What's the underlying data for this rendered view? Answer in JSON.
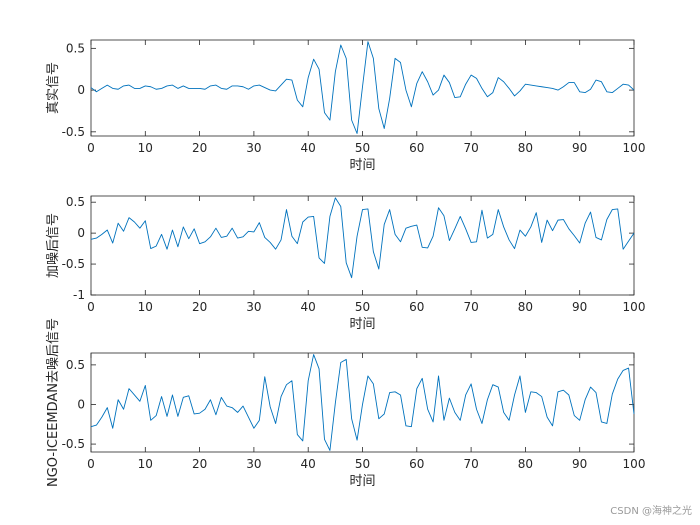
{
  "chart_data": [
    {
      "type": "line",
      "xlabel": "时间",
      "ylabel": "真实信号",
      "xlim": [
        0,
        100
      ],
      "ylim": [
        -0.55,
        0.6
      ],
      "xticks": [
        0,
        10,
        20,
        30,
        40,
        50,
        60,
        70,
        80,
        90,
        100
      ],
      "yticks": [
        -0.5,
        0,
        0.5
      ],
      "ytick_labels": [
        "-0.5",
        "0",
        "0.5"
      ],
      "grid": false,
      "series_color": "#0072BD",
      "x": [
        0,
        1,
        2,
        3,
        4,
        5,
        6,
        7,
        8,
        9,
        10,
        11,
        12,
        13,
        14,
        15,
        16,
        17,
        18,
        19,
        20,
        21,
        22,
        23,
        24,
        25,
        26,
        27,
        28,
        29,
        30,
        31,
        32,
        33,
        34,
        35,
        36,
        37,
        38,
        39,
        40,
        41,
        42,
        43,
        44,
        45,
        46,
        47,
        48,
        49,
        50,
        51,
        52,
        53,
        54,
        55,
        56,
        57,
        58,
        59,
        60,
        61,
        62,
        63,
        64,
        65,
        66,
        67,
        68,
        69,
        70,
        71,
        72,
        73,
        74,
        75,
        76,
        77,
        78,
        79,
        80,
        81,
        82,
        83,
        84,
        85,
        86,
        87,
        88,
        89,
        90,
        91,
        92,
        93,
        94,
        95,
        96,
        97,
        98,
        99,
        100
      ],
      "values": [
        0.03,
        -0.02,
        0.02,
        0.06,
        0.02,
        0.01,
        0.05,
        0.06,
        0.02,
        0.02,
        0.05,
        0.04,
        0.01,
        0.02,
        0.05,
        0.06,
        0.02,
        0.05,
        0.02,
        0.02,
        0.02,
        0.01,
        0.05,
        0.06,
        0.02,
        0.01,
        0.05,
        0.05,
        0.04,
        0.01,
        0.05,
        0.06,
        0.03,
        0.0,
        -0.01,
        0.06,
        0.13,
        0.12,
        -0.12,
        -0.2,
        0.15,
        0.37,
        0.25,
        -0.27,
        -0.36,
        0.22,
        0.54,
        0.38,
        -0.36,
        -0.52,
        0.04,
        0.58,
        0.38,
        -0.22,
        -0.46,
        -0.1,
        0.38,
        0.33,
        0.0,
        -0.2,
        0.08,
        0.22,
        0.1,
        -0.06,
        0.0,
        0.18,
        0.09,
        -0.09,
        -0.08,
        0.07,
        0.18,
        0.14,
        0.02,
        -0.08,
        -0.03,
        0.15,
        0.1,
        0.02,
        -0.07,
        -0.01,
        0.07,
        0.06,
        0.05,
        0.04,
        0.03,
        0.02,
        0.0,
        0.04,
        0.09,
        0.09,
        -0.02,
        -0.03,
        0.01,
        0.12,
        0.1,
        -0.02,
        -0.03,
        0.02,
        0.07,
        0.06,
        0.0
      ]
    },
    {
      "type": "line",
      "xlabel": "时间",
      "ylabel": "加噪后信号",
      "xlim": [
        0,
        100
      ],
      "ylim": [
        -1,
        0.6
      ],
      "xticks": [
        0,
        10,
        20,
        30,
        40,
        50,
        60,
        70,
        80,
        90,
        100
      ],
      "yticks": [
        -1,
        -0.5,
        0,
        0.5
      ],
      "ytick_labels": [
        "-1",
        "-0.5",
        "0",
        "0.5"
      ],
      "grid": false,
      "series_color": "#0072BD",
      "x": [
        0,
        1,
        2,
        3,
        4,
        5,
        6,
        7,
        8,
        9,
        10,
        11,
        12,
        13,
        14,
        15,
        16,
        17,
        18,
        19,
        20,
        21,
        22,
        23,
        24,
        25,
        26,
        27,
        28,
        29,
        30,
        31,
        32,
        33,
        34,
        35,
        36,
        37,
        38,
        39,
        40,
        41,
        42,
        43,
        44,
        45,
        46,
        47,
        48,
        49,
        50,
        51,
        52,
        53,
        54,
        55,
        56,
        57,
        58,
        59,
        60,
        61,
        62,
        63,
        64,
        65,
        66,
        67,
        68,
        69,
        70,
        71,
        72,
        73,
        74,
        75,
        76,
        77,
        78,
        79,
        80,
        81,
        82,
        83,
        84,
        85,
        86,
        87,
        88,
        89,
        90,
        91,
        92,
        93,
        94,
        95,
        96,
        97,
        98,
        99,
        100
      ],
      "values": [
        -0.1,
        -0.08,
        -0.02,
        0.05,
        -0.16,
        0.16,
        0.03,
        0.25,
        0.18,
        0.08,
        0.2,
        -0.25,
        -0.21,
        -0.02,
        -0.26,
        0.05,
        -0.22,
        0.1,
        -0.09,
        0.07,
        -0.17,
        -0.14,
        -0.06,
        0.08,
        -0.07,
        -0.05,
        0.08,
        -0.08,
        -0.06,
        0.03,
        0.02,
        0.17,
        -0.07,
        -0.15,
        -0.26,
        -0.11,
        0.38,
        -0.05,
        -0.17,
        0.18,
        0.26,
        0.27,
        -0.4,
        -0.49,
        0.27,
        0.57,
        0.43,
        -0.48,
        -0.72,
        -0.05,
        0.38,
        0.39,
        -0.3,
        -0.58,
        0.14,
        0.38,
        -0.02,
        -0.14,
        0.08,
        0.11,
        0.13,
        -0.23,
        -0.24,
        -0.05,
        0.41,
        0.28,
        -0.12,
        0.07,
        0.27,
        0.07,
        -0.15,
        -0.14,
        0.37,
        -0.08,
        -0.02,
        0.38,
        0.1,
        -0.11,
        -0.25,
        0.05,
        -0.05,
        0.1,
        0.33,
        -0.15,
        0.21,
        0.04,
        0.21,
        0.22,
        0.07,
        -0.04,
        -0.16,
        0.16,
        0.34,
        -0.07,
        -0.11,
        0.22,
        0.38,
        0.39,
        -0.26,
        -0.13,
        0.0
      ]
    },
    {
      "type": "line",
      "xlabel": "时间",
      "ylabel": "NGO-ICEEMDAN去噪后信号",
      "xlim": [
        0,
        100
      ],
      "ylim": [
        -0.6,
        0.65
      ],
      "xticks": [
        0,
        10,
        20,
        30,
        40,
        50,
        60,
        70,
        80,
        90,
        100
      ],
      "yticks": [
        -0.5,
        0,
        0.5
      ],
      "ytick_labels": [
        "-0.5",
        "0",
        "0.5"
      ],
      "grid": false,
      "series_color": "#0072BD",
      "x": [
        0,
        1,
        2,
        3,
        4,
        5,
        6,
        7,
        8,
        9,
        10,
        11,
        12,
        13,
        14,
        15,
        16,
        17,
        18,
        19,
        20,
        21,
        22,
        23,
        24,
        25,
        26,
        27,
        28,
        29,
        30,
        31,
        32,
        33,
        34,
        35,
        36,
        37,
        38,
        39,
        40,
        41,
        42,
        43,
        44,
        45,
        46,
        47,
        48,
        49,
        50,
        51,
        52,
        53,
        54,
        55,
        56,
        57,
        58,
        59,
        60,
        61,
        62,
        63,
        64,
        65,
        66,
        67,
        68,
        69,
        70,
        71,
        72,
        73,
        74,
        75,
        76,
        77,
        78,
        79,
        80,
        81,
        82,
        83,
        84,
        85,
        86,
        87,
        88,
        89,
        90,
        91,
        92,
        93,
        94,
        95,
        96,
        97,
        98,
        99,
        100
      ],
      "values": [
        -0.28,
        -0.26,
        -0.16,
        -0.04,
        -0.3,
        0.06,
        -0.06,
        0.2,
        0.12,
        0.04,
        0.24,
        -0.2,
        -0.14,
        0.1,
        -0.15,
        0.12,
        -0.15,
        0.09,
        0.11,
        -0.12,
        -0.11,
        -0.06,
        0.06,
        -0.13,
        0.09,
        -0.02,
        -0.04,
        -0.1,
        -0.02,
        -0.16,
        -0.3,
        -0.2,
        0.35,
        -0.03,
        -0.24,
        0.1,
        0.25,
        0.3,
        -0.38,
        -0.46,
        0.3,
        0.63,
        0.45,
        -0.44,
        -0.58,
        0.02,
        0.53,
        0.57,
        -0.18,
        -0.45,
        0.0,
        0.36,
        0.26,
        -0.18,
        -0.12,
        0.15,
        0.16,
        0.12,
        -0.27,
        -0.28,
        0.2,
        0.33,
        -0.06,
        -0.22,
        0.36,
        -0.2,
        0.08,
        -0.1,
        -0.2,
        0.12,
        0.26,
        -0.06,
        -0.24,
        0.06,
        0.25,
        0.22,
        -0.1,
        -0.2,
        0.12,
        0.36,
        -0.1,
        0.16,
        0.15,
        0.1,
        -0.16,
        -0.27,
        0.16,
        0.18,
        0.12,
        -0.14,
        -0.2,
        0.06,
        0.22,
        0.15,
        -0.22,
        -0.24,
        0.13,
        0.32,
        0.43,
        0.46,
        -0.12
      ]
    }
  ],
  "watermark": "CSDN @海神之光"
}
